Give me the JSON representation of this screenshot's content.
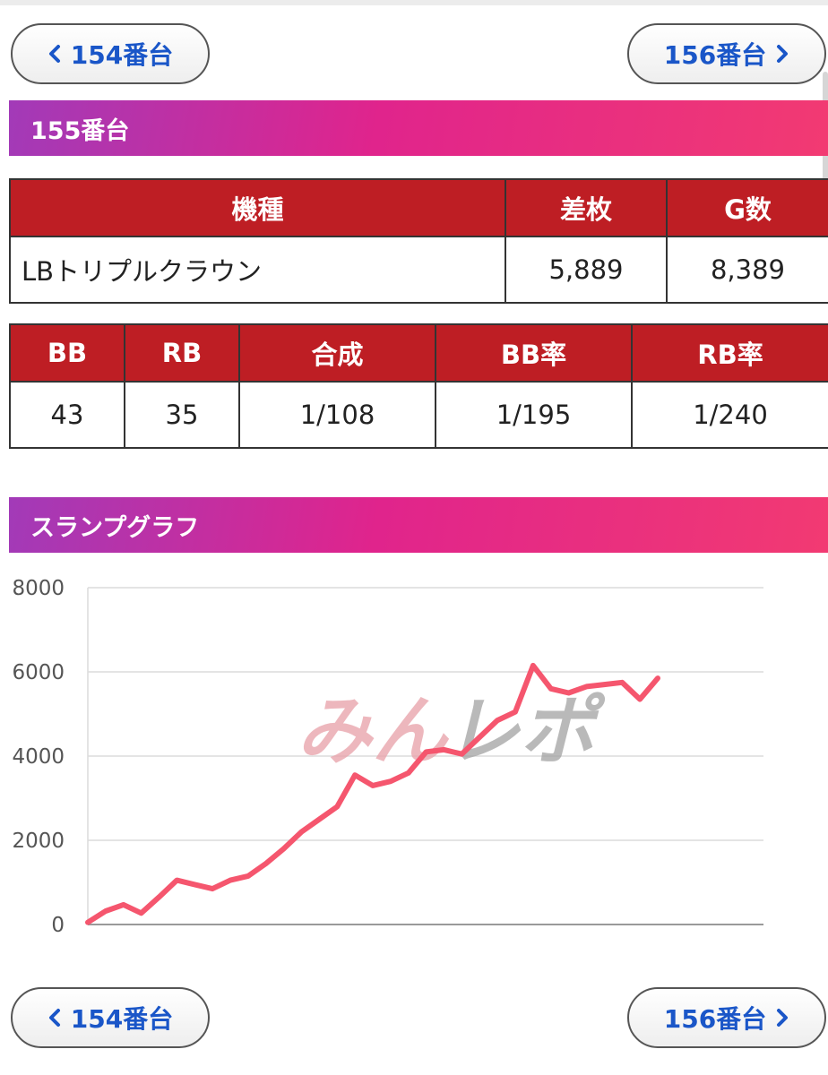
{
  "nav": {
    "prev_label": "154番台",
    "next_label": "156番台"
  },
  "header": {
    "title": "155番台"
  },
  "machine_table": {
    "headers": [
      "機種",
      "差枚",
      "G数"
    ],
    "row": [
      "LBトリプルクラウン",
      "5,889",
      "8,389"
    ]
  },
  "bonus_table": {
    "headers": [
      "BB",
      "RB",
      "合成",
      "BB率",
      "RB率"
    ],
    "row": [
      "43",
      "35",
      "1/108",
      "1/195",
      "1/240"
    ]
  },
  "graph_section": {
    "title": "スランプグラフ"
  },
  "watermark": {
    "text": "みんレポ"
  },
  "colors": {
    "header_gradient": [
      "#a23ab8",
      "#e0248c",
      "#f23a72"
    ],
    "table_header": "#be1e24",
    "line": "#f5566e",
    "nav_text": "#1a56c8"
  },
  "icons": {
    "prev": "chevron-left-icon",
    "next": "chevron-right-icon"
  },
  "chart_data": {
    "type": "line",
    "ylim": [
      0,
      8000
    ],
    "yticks": [
      "8000",
      "6000",
      "4000",
      "2000",
      "0"
    ],
    "grid": true,
    "series": [
      {
        "values": [
          50,
          320,
          470,
          270,
          650,
          1050,
          950,
          850,
          1050,
          1150,
          1450,
          1800,
          2200,
          2500,
          2800,
          3550,
          3300,
          3400,
          3600,
          4100,
          4150,
          4050,
          4450,
          4850,
          5050,
          6150,
          5600,
          5500,
          5650,
          5700,
          5750,
          5350,
          5850
        ]
      }
    ]
  }
}
